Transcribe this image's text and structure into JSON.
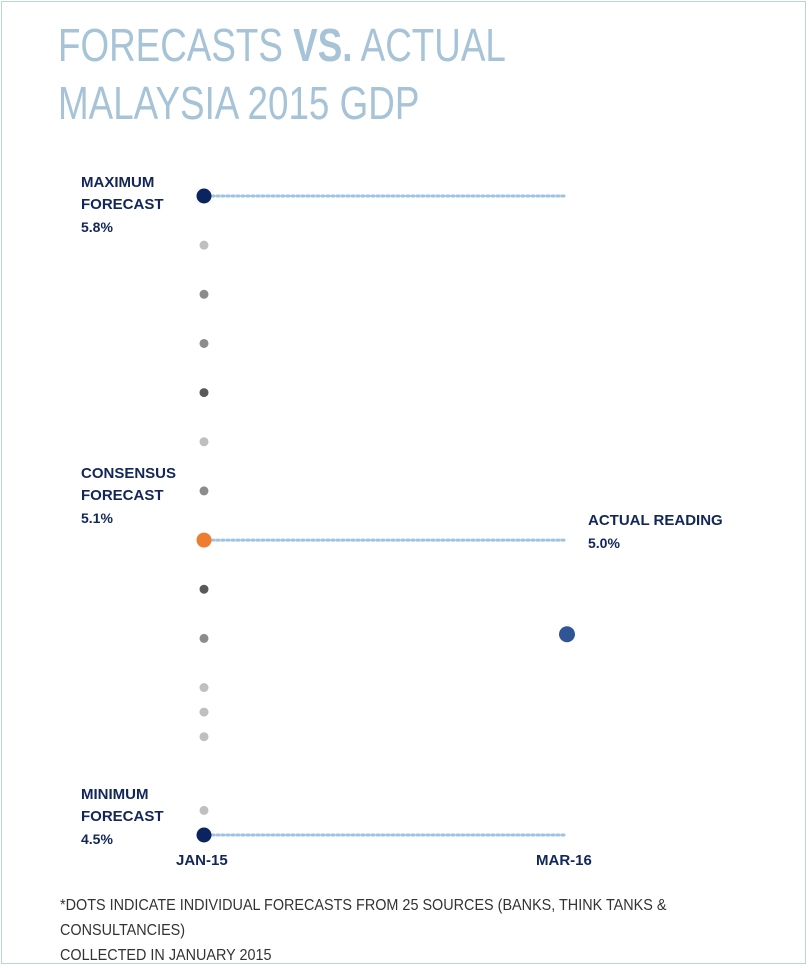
{
  "title": {
    "line1_part1": "FORECASTS ",
    "line1_bold": "VS.",
    "line1_part2": " ACTUAL",
    "line2": "MALAYSIA 2015  GDP"
  },
  "labels": {
    "max_line1": "MAXIMUM",
    "max_line2": "FORECAST",
    "max_value": "5.8%",
    "consensus_line1": "CONSENSUS",
    "consensus_line2": "FORECAST",
    "consensus_value": "5.1%",
    "min_line1": "MINIMUM",
    "min_line2": "FORECAST",
    "min_value": "4.5%",
    "actual_line1": "ACTUAL READING",
    "actual_value": "5.0%"
  },
  "footnote": {
    "line1": "*DOTS INDICATE INDIVIDUAL FORECASTS FROM 25 SOURCES  (BANKS, THINK TANKS & CONSULTANCIES)",
    "line2": "COLLECTED IN JANUARY 2015"
  },
  "colors": {
    "title": "#a6c3d7",
    "navy": "#0b2460",
    "consensus": "#ee7d30",
    "actual": "#2f5597",
    "dotted_line": "#9dc3e6",
    "grey_light": "#bfbfbf",
    "grey_mid": "#8c8c8c",
    "grey_dark": "#595959"
  },
  "chart_data": {
    "type": "scatter",
    "title": "FORECASTS VS. ACTUAL MALAYSIA 2015  GDP",
    "x_categories": [
      "JAN-15",
      "MAR-16"
    ],
    "ylim": [
      4.5,
      5.8
    ],
    "forecasts": [
      {
        "value": 5.8,
        "kind": "maximum",
        "tone": "navy"
      },
      {
        "value": 5.7,
        "kind": "forecast",
        "tone": "light"
      },
      {
        "value": 5.6,
        "kind": "forecast",
        "tone": "mid"
      },
      {
        "value": 5.5,
        "kind": "forecast",
        "tone": "mid"
      },
      {
        "value": 5.4,
        "kind": "forecast",
        "tone": "dark"
      },
      {
        "value": 5.3,
        "kind": "forecast",
        "tone": "light"
      },
      {
        "value": 5.2,
        "kind": "forecast",
        "tone": "mid"
      },
      {
        "value": 5.1,
        "kind": "consensus",
        "tone": "orange"
      },
      {
        "value": 5.0,
        "kind": "forecast",
        "tone": "dark"
      },
      {
        "value": 4.9,
        "kind": "forecast",
        "tone": "mid"
      },
      {
        "value": 4.8,
        "kind": "forecast",
        "tone": "light"
      },
      {
        "value": 4.75,
        "kind": "forecast",
        "tone": "light"
      },
      {
        "value": 4.7,
        "kind": "forecast",
        "tone": "light"
      },
      {
        "value": 4.55,
        "kind": "forecast",
        "tone": "light"
      },
      {
        "value": 4.5,
        "kind": "minimum",
        "tone": "navy"
      }
    ],
    "actual": {
      "x": "MAR-16",
      "value": 5.0
    },
    "reference_lines": [
      5.8,
      5.1,
      4.5
    ]
  }
}
